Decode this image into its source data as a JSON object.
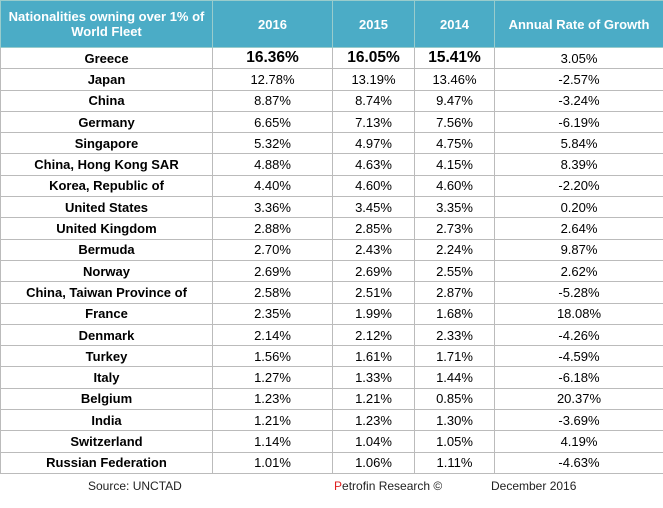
{
  "table": {
    "header": [
      "Nationalities owning over 1% of World Fleet",
      "2016",
      "2015",
      "2014",
      "Annual Rate of Growth"
    ],
    "rows": [
      [
        "Greece",
        "16.36%",
        "16.05%",
        "15.41%",
        "3.05%"
      ],
      [
        "Japan",
        "12.78%",
        "13.19%",
        "13.46%",
        "-2.57%"
      ],
      [
        "China",
        "8.87%",
        "8.74%",
        "9.47%",
        "-3.24%"
      ],
      [
        "Germany",
        "6.65%",
        "7.13%",
        "7.56%",
        "-6.19%"
      ],
      [
        "Singapore",
        "5.32%",
        "4.97%",
        "4.75%",
        "5.84%"
      ],
      [
        "China, Hong Kong SAR",
        "4.88%",
        "4.63%",
        "4.15%",
        "8.39%"
      ],
      [
        "Korea, Republic of",
        "4.40%",
        "4.60%",
        "4.60%",
        "-2.20%"
      ],
      [
        "United States",
        "3.36%",
        "3.45%",
        "3.35%",
        "0.20%"
      ],
      [
        "United Kingdom",
        "2.88%",
        "2.85%",
        "2.73%",
        "2.64%"
      ],
      [
        "Bermuda",
        "2.70%",
        "2.43%",
        "2.24%",
        "9.87%"
      ],
      [
        "Norway",
        "2.69%",
        "2.69%",
        "2.55%",
        "2.62%"
      ],
      [
        "China, Taiwan Province of",
        "2.58%",
        "2.51%",
        "2.87%",
        "-5.28%"
      ],
      [
        "France",
        "2.35%",
        "1.99%",
        "1.68%",
        "18.08%"
      ],
      [
        "Denmark",
        "2.14%",
        "2.12%",
        "2.33%",
        "-4.26%"
      ],
      [
        "Turkey",
        "1.56%",
        "1.61%",
        "1.71%",
        "-4.59%"
      ],
      [
        "Italy",
        "1.27%",
        "1.33%",
        "1.44%",
        "-6.18%"
      ],
      [
        "Belgium",
        "1.23%",
        "1.21%",
        "0.85%",
        "20.37%"
      ],
      [
        "India",
        "1.21%",
        "1.23%",
        "1.30%",
        "-3.69%"
      ],
      [
        "Switzerland",
        "1.14%",
        "1.04%",
        "1.05%",
        "4.19%"
      ],
      [
        "Russian Federation",
        "1.01%",
        "1.06%",
        "1.11%",
        "-4.63%"
      ]
    ]
  },
  "footer": {
    "source": "Source: UNCTAD",
    "credit": "Petrofin Research ©",
    "date": "December 2016"
  }
}
